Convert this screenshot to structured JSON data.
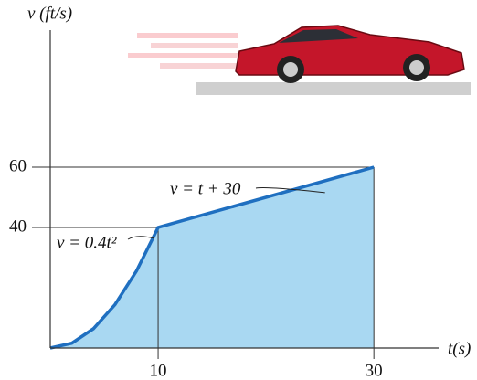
{
  "chart_data": {
    "type": "line",
    "y_label": "v (ft/s)",
    "x_label": "t(s)",
    "x": [
      0,
      2,
      4,
      6,
      8,
      10,
      30
    ],
    "series": [
      {
        "name": "v",
        "color": "#1f6fc0",
        "values": [
          0,
          1.6,
          6.4,
          14.4,
          25.6,
          40,
          60
        ]
      }
    ],
    "fill": "#a9d8f2",
    "xlim": [
      0,
      36
    ],
    "ylim": [
      0,
      110
    ],
    "xticks": [
      10,
      30
    ],
    "yticks": [
      40,
      60
    ],
    "annotations": [
      {
        "text": "v = 0.4t²",
        "x": 10,
        "y": 40
      },
      {
        "text": "v = t + 30",
        "x": 17,
        "y": 47
      }
    ]
  }
}
